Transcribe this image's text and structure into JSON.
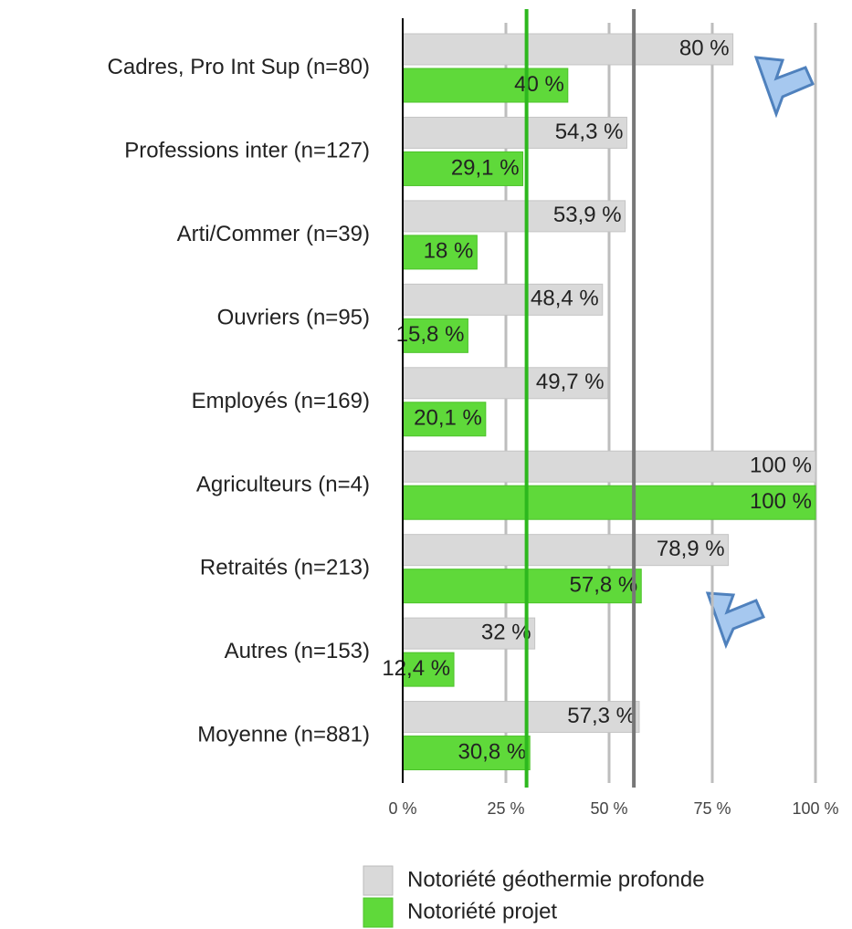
{
  "chart_data": {
    "type": "hbar",
    "categories": [
      "Cadres, Pro Int Sup (n=80)",
      "Professions inter (n=127)",
      "Arti/Commer (n=39)",
      "Ouvriers (n=95)",
      "Employés (n=169)",
      "Agriculteurs (n=4)",
      "Retraités (n=213)",
      "Autres (n=153)",
      "Moyenne (n=881)"
    ],
    "series": [
      {
        "name": "Notoriété géothermie profonde",
        "color": "#d9d9d9",
        "values": [
          80,
          54.3,
          53.9,
          48.4,
          49.7,
          100,
          78.9,
          32,
          57.3
        ],
        "value_labels": [
          "80 %",
          "54,3 %",
          "53,9 %",
          "48,4 %",
          "49,7 %",
          "100 %",
          "78,9 %",
          "32 %",
          "57,3 %"
        ]
      },
      {
        "name": "Notoriété projet",
        "color": "#5fd93a",
        "values": [
          40,
          29.1,
          18,
          15.8,
          20.1,
          100,
          57.8,
          12.4,
          30.8
        ],
        "value_labels": [
          "40 %",
          "29,1 %",
          "18 %",
          "15,8 %",
          "20,1 %",
          "100 %",
          "57,8 %",
          "12,4 %",
          "30,8 %"
        ]
      }
    ],
    "xlim": [
      0,
      100
    ],
    "xticks": [
      {
        "value": 0,
        "label": "0 %"
      },
      {
        "value": 25,
        "label": "25 %"
      },
      {
        "value": 50,
        "label": "50 %"
      },
      {
        "value": 75,
        "label": "75 %"
      },
      {
        "value": 100,
        "label": "100 %"
      }
    ],
    "grid": true,
    "reference_lines": [
      {
        "value": 56,
        "color": "#777777"
      },
      {
        "value": 30,
        "color": "#2db81e"
      }
    ],
    "legend": "bottom"
  }
}
